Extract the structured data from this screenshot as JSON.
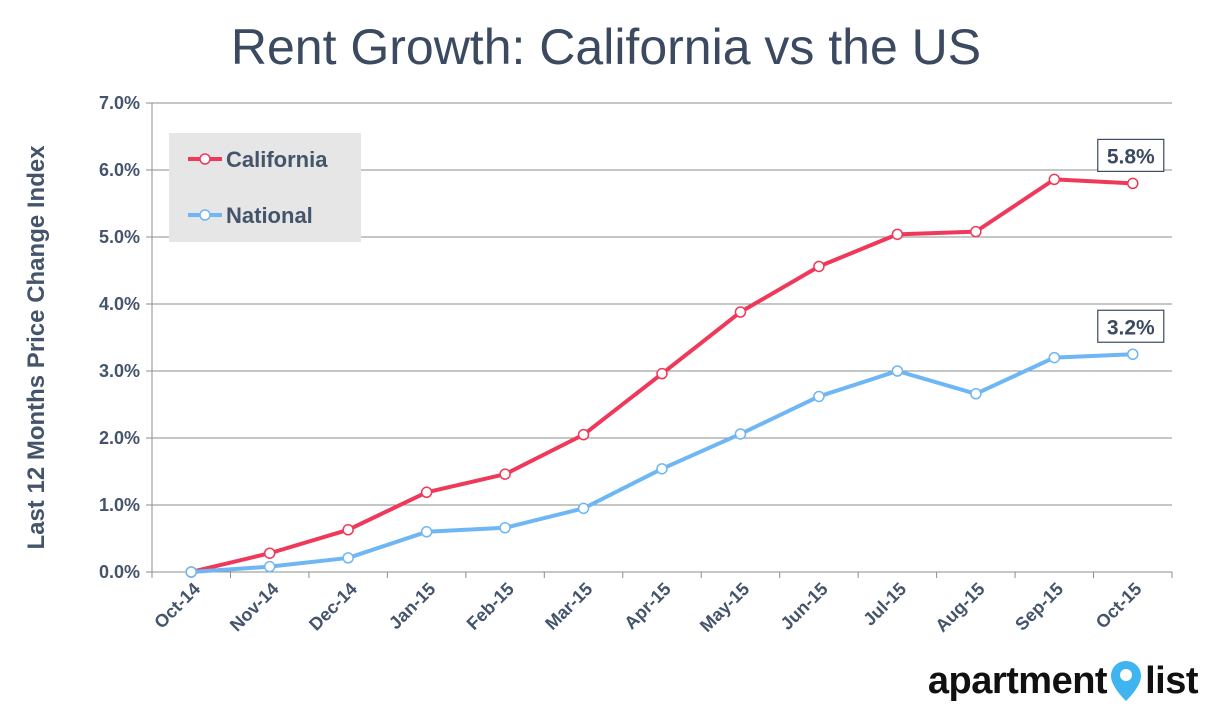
{
  "chart_data": {
    "type": "line",
    "title": "Rent Growth: California vs the US",
    "ylabel": "Last 12 Months Price Change Index",
    "xlabel": "",
    "categories": [
      "Oct-14",
      "Nov-14",
      "Dec-14",
      "Jan-15",
      "Feb-15",
      "Mar-15",
      "Apr-15",
      "May-15",
      "Jun-15",
      "Jul-15",
      "Aug-15",
      "Sep-15",
      "Oct-15"
    ],
    "y_ticks": [
      "0.0%",
      "1.0%",
      "2.0%",
      "3.0%",
      "4.0%",
      "5.0%",
      "6.0%",
      "7.0%"
    ],
    "ylim": [
      0,
      7
    ],
    "grid": true,
    "legend_position": "top-left",
    "series": [
      {
        "name": "California",
        "color": "#f0385a",
        "values": [
          0.0,
          0.28,
          0.63,
          1.19,
          1.46,
          2.05,
          2.96,
          3.88,
          4.56,
          5.04,
          5.08,
          5.86,
          5.8
        ]
      },
      {
        "name": "National",
        "color": "#6fb6f4",
        "values": [
          0.0,
          0.08,
          0.21,
          0.6,
          0.66,
          0.95,
          1.54,
          2.06,
          2.62,
          3.0,
          2.66,
          3.2,
          3.25
        ]
      }
    ],
    "annotations": [
      {
        "series": "California",
        "text": "5.8%"
      },
      {
        "series": "National",
        "text": "3.2%"
      }
    ]
  },
  "logo": {
    "left_text": "apartment",
    "right_text": "list",
    "pin_color": "#3fb4f0"
  }
}
